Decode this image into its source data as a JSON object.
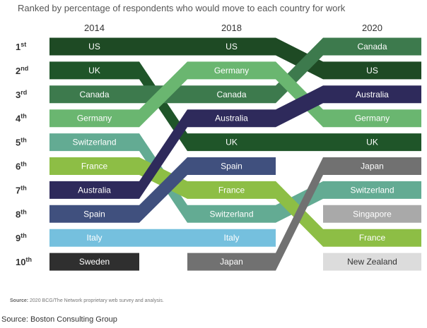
{
  "subtitle": "Ranked by percentage of respondents who would move to each country for work",
  "source_note": {
    "label": "Source:",
    "text": "2020 BCG/The Network proprietary web survey and analysis."
  },
  "caption": "Source: Boston Consulting Group",
  "colors": {
    "US": "#1e4a24",
    "UK": "#1f5529",
    "Canada": "#3d7a4d",
    "Germany": "#6ab670",
    "Australia": "#2e2a5b",
    "Switzerland": "#63ab93",
    "France": "#8dbe45",
    "Spain": "#40507e",
    "Italy": "#75c0de",
    "Sweden": "#2f2f2f",
    "Japan": "#717171",
    "Singapore": "#a9a9a9",
    "New Zealand": "#dcdcdc"
  },
  "chart_data": {
    "type": "bump",
    "years": [
      "2014",
      "2018",
      "2020"
    ],
    "ranks": [
      {
        "num": "1",
        "suffix": "st"
      },
      {
        "num": "2",
        "suffix": "nd"
      },
      {
        "num": "3",
        "suffix": "rd"
      },
      {
        "num": "4",
        "suffix": "th"
      },
      {
        "num": "5",
        "suffix": "th"
      },
      {
        "num": "6",
        "suffix": "th"
      },
      {
        "num": "7",
        "suffix": "th"
      },
      {
        "num": "8",
        "suffix": "th"
      },
      {
        "num": "9",
        "suffix": "th"
      },
      {
        "num": "10",
        "suffix": "th"
      }
    ],
    "series": [
      {
        "name": "US",
        "ranks": [
          1,
          1,
          2
        ]
      },
      {
        "name": "UK",
        "ranks": [
          2,
          5,
          5
        ]
      },
      {
        "name": "Canada",
        "ranks": [
          3,
          3,
          1
        ]
      },
      {
        "name": "Germany",
        "ranks": [
          4,
          2,
          4
        ]
      },
      {
        "name": "Switzerland",
        "ranks": [
          5,
          8,
          7
        ]
      },
      {
        "name": "France",
        "ranks": [
          6,
          7,
          9
        ]
      },
      {
        "name": "Australia",
        "ranks": [
          7,
          4,
          3
        ]
      },
      {
        "name": "Spain",
        "ranks": [
          8,
          6,
          null
        ]
      },
      {
        "name": "Italy",
        "ranks": [
          9,
          9,
          null
        ]
      },
      {
        "name": "Sweden",
        "ranks": [
          10,
          null,
          null
        ]
      },
      {
        "name": "Japan",
        "ranks": [
          null,
          10,
          6
        ]
      },
      {
        "name": "Singapore",
        "ranks": [
          null,
          null,
          8
        ]
      },
      {
        "name": "New Zealand",
        "ranks": [
          null,
          null,
          10
        ]
      }
    ]
  }
}
